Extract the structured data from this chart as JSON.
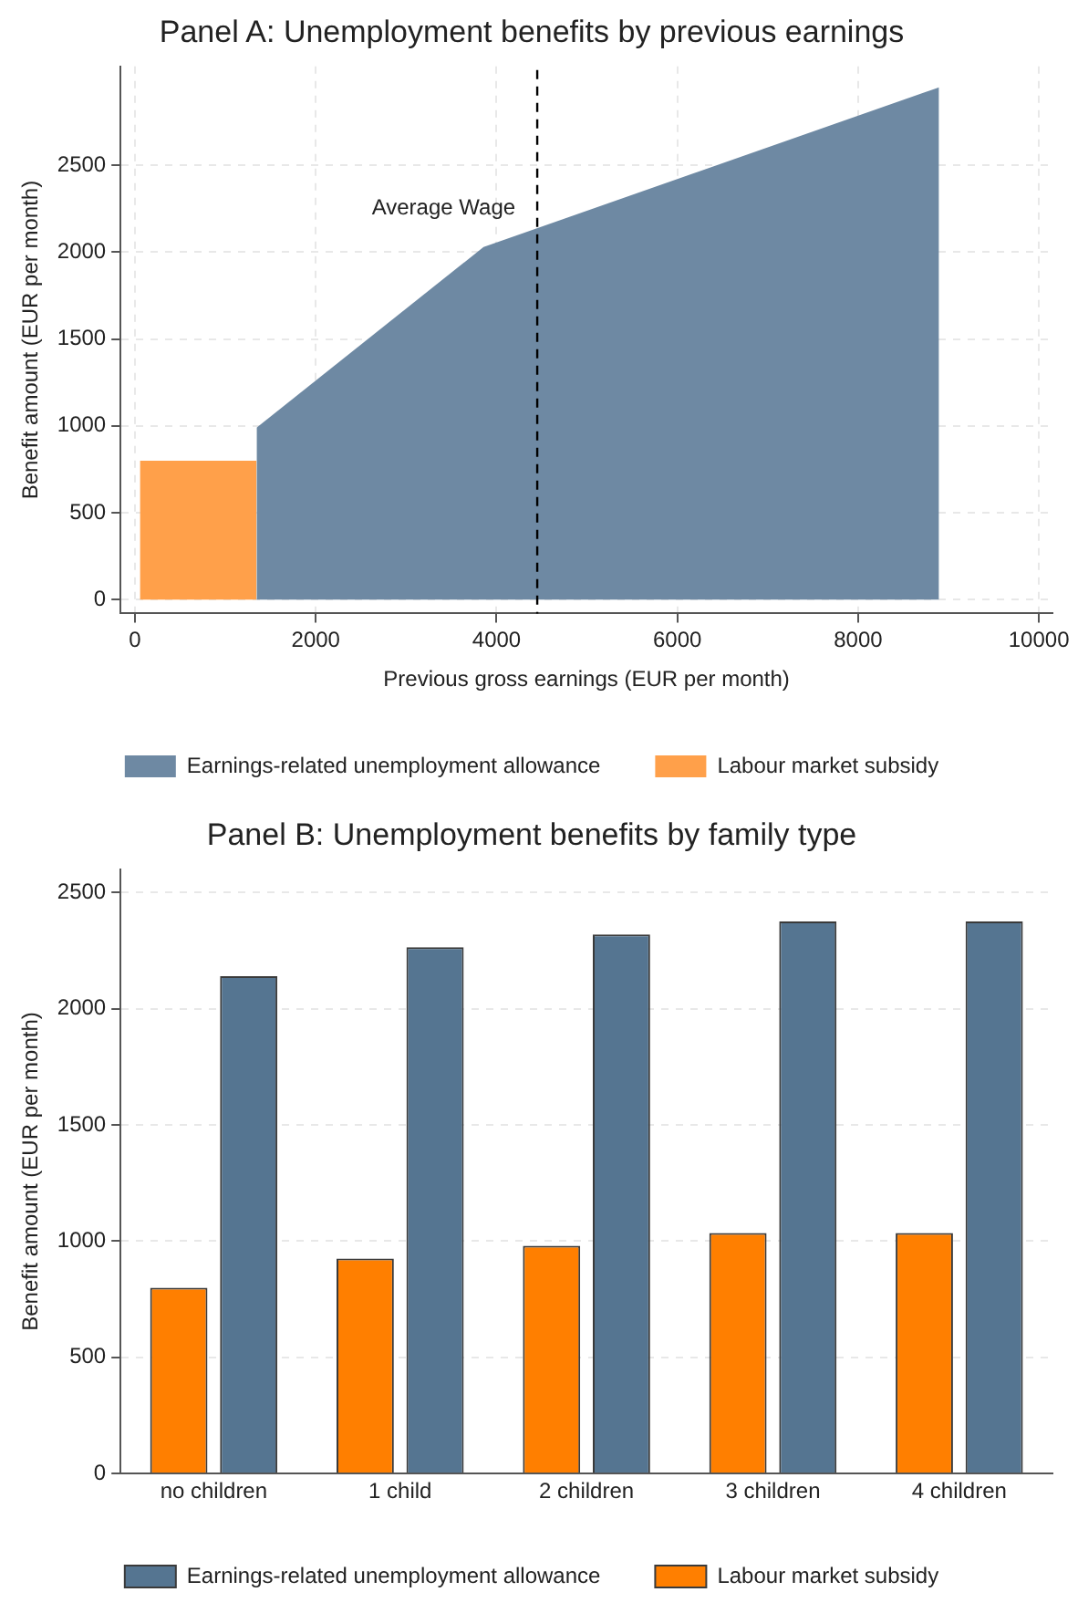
{
  "chart_data": [
    {
      "type": "area",
      "title": "Panel A: Unemployment benefits by previous earnings",
      "xlabel": "Previous gross earnings (EUR per month)",
      "ylabel": "Benefit amount (EUR per month)",
      "series": [
        {
          "name": "Earnings-related unemployment allowance",
          "color": "#6e89a3",
          "x": [
            1345,
            3856,
            8895
          ],
          "values": [
            990,
            2030,
            2950
          ]
        },
        {
          "name": "Labour market subsidy",
          "color": "#ffa04a",
          "x": [
            54,
            1345
          ],
          "values": [
            800,
            800
          ]
        }
      ],
      "xlim": [
        -160,
        10150
      ],
      "xticks": [
        0,
        2000,
        4000,
        6000,
        8000,
        10000
      ],
      "ylim": [
        -80,
        3070
      ],
      "yticks": [
        0,
        500,
        1000,
        1500,
        2000,
        2500
      ],
      "ref_lines": [
        {
          "axis": "x",
          "value": 4450,
          "label": "Average Wage",
          "color": "#000000",
          "line_style": "dashed"
        }
      ],
      "grid": true,
      "legend": "bottom"
    },
    {
      "type": "bar",
      "title": "Panel B: Unemployment benefits by family type",
      "ylabel": "Benefit amount (EUR per month)",
      "categories": [
        "no children",
        "1 child",
        "2 children",
        "3 children",
        "4 children"
      ],
      "series": [
        {
          "name": "Earnings-related unemployment allowance",
          "color": "#557591",
          "values": [
            2140,
            2265,
            2320,
            2375,
            2375
          ]
        },
        {
          "name": "Labour market subsidy",
          "color": "#ff7f00",
          "values": [
            800,
            925,
            980,
            1035,
            1035
          ]
        }
      ],
      "ylim": [
        0,
        2600
      ],
      "yticks": [
        0,
        500,
        1000,
        1500,
        2000,
        2500
      ],
      "grid": "y",
      "legend": "bottom"
    }
  ]
}
